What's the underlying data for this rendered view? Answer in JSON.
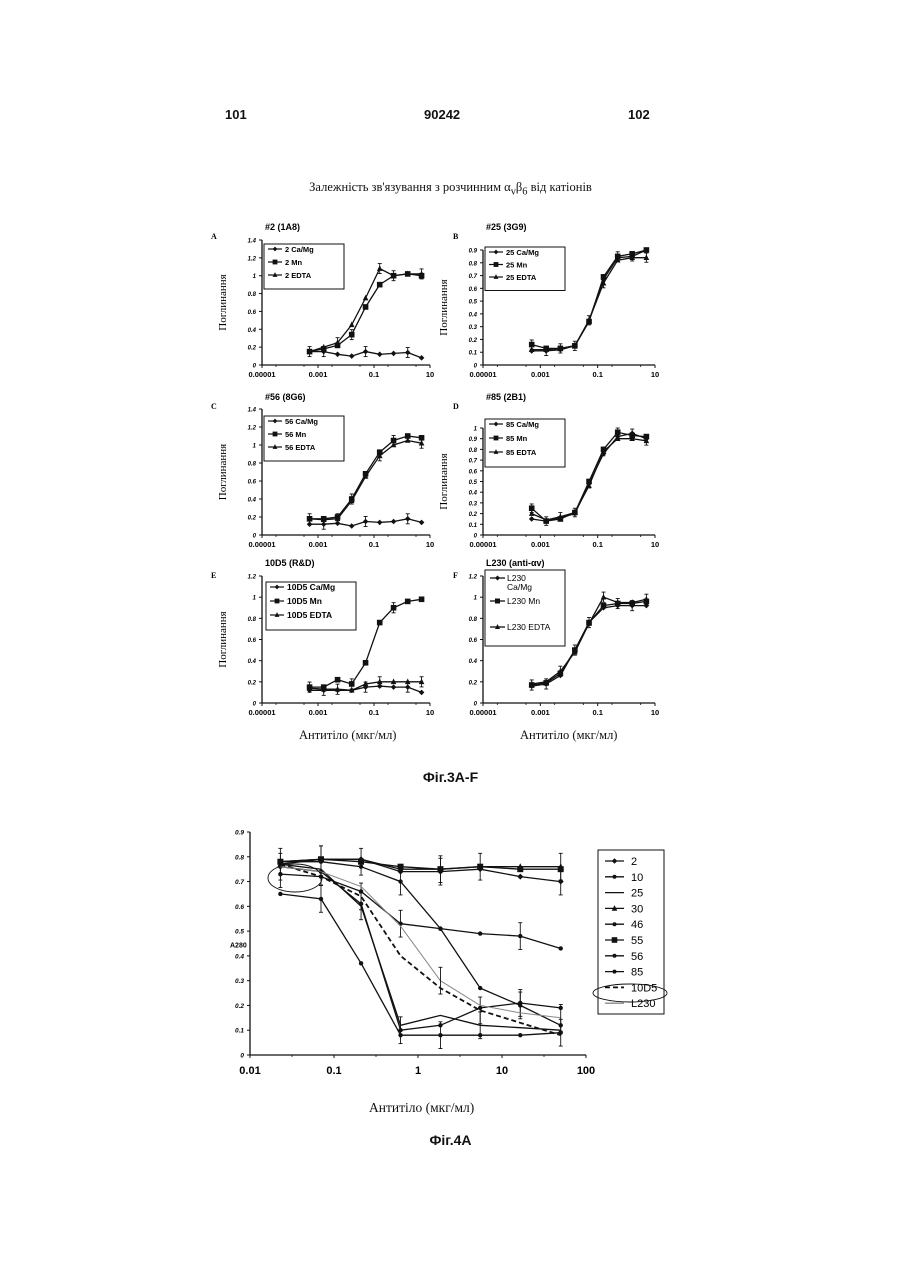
{
  "page": {
    "left": "101",
    "center": "90242",
    "right": "102"
  },
  "fig3": {
    "title": "Залежність зв'язування з розчинним α",
    "title_sub1": "v",
    "title_mid": "β",
    "title_sub2": "6",
    "title_end": " від катіонів",
    "caption": "Фіг.3А-F",
    "xlabel": "Антитіло (мкг/мл)"
  },
  "fig4": {
    "caption": "Фіг.4А",
    "xlabel": "Антитіло (мкг/мл)"
  },
  "chart_data": [
    {
      "id": "A",
      "letter": "A",
      "type": "line",
      "title": "#2 (1A8)",
      "xlabel": "",
      "ylabel": "Поглинання",
      "xscale": "log",
      "xlim": [
        1e-05,
        10
      ],
      "xticks": [
        "0.00001",
        "0.001",
        "0.1",
        "10"
      ],
      "ylim": [
        0,
        1.4
      ],
      "yticks": [
        "0",
        "0.2",
        "0.4",
        "0.6",
        "0.8",
        "1",
        "1.2",
        "1.4"
      ],
      "legend": "top-left",
      "ydec": 1,
      "x": [
        0.0005,
        0.0016,
        0.005,
        0.016,
        0.05,
        0.16,
        0.5,
        1.6,
        5
      ],
      "series": [
        {
          "name": "2 Ca/Mg",
          "marker": "diamond",
          "values": [
            0.15,
            0.15,
            0.12,
            0.1,
            0.15,
            0.12,
            0.13,
            0.14,
            0.08
          ]
        },
        {
          "name": "2 Mn",
          "marker": "square",
          "values": [
            0.15,
            0.18,
            0.22,
            0.34,
            0.65,
            0.9,
            1.0,
            1.02,
            1.0
          ]
        },
        {
          "name": "2 EDTA",
          "marker": "triangle",
          "values": [
            0.15,
            0.2,
            0.25,
            0.45,
            0.75,
            1.08,
            1.0,
            1.02,
            1.02
          ]
        }
      ]
    },
    {
      "id": "B",
      "letter": "B",
      "type": "line",
      "title": "#25 (3G9)",
      "xlabel": "",
      "ylabel": "Поглинання",
      "xscale": "log",
      "xlim": [
        1e-05,
        10
      ],
      "xticks": [
        "0.00001",
        "0.001",
        "0.1",
        "10"
      ],
      "ylim": [
        0,
        0.9
      ],
      "yticks": [
        "0",
        "0.1",
        "0.2",
        "0.3",
        "0.4",
        "0.5",
        "0.6",
        "0.7",
        "0.8",
        "0.9"
      ],
      "legend": "top-left",
      "ydec": 1,
      "x": [
        0.0005,
        0.0016,
        0.005,
        0.016,
        0.05,
        0.16,
        0.5,
        1.6,
        5
      ],
      "series": [
        {
          "name": "25 Ca/Mg",
          "marker": "diamond",
          "values": [
            0.11,
            0.11,
            0.12,
            0.15,
            0.35,
            0.67,
            0.84,
            0.85,
            0.9
          ]
        },
        {
          "name": "25 Mn",
          "marker": "square",
          "values": [
            0.16,
            0.13,
            0.13,
            0.15,
            0.34,
            0.69,
            0.85,
            0.87,
            0.9
          ]
        },
        {
          "name": "25 EDTA",
          "marker": "triangle",
          "values": [
            0.12,
            0.12,
            0.13,
            0.15,
            0.35,
            0.64,
            0.82,
            0.84,
            0.84
          ]
        }
      ]
    },
    {
      "id": "C",
      "letter": "C",
      "type": "line",
      "title": "#56 (8G6)",
      "xlabel": "",
      "ylabel": "Поглинання",
      "xscale": "log",
      "xlim": [
        1e-05,
        10
      ],
      "xticks": [
        "0.00001",
        "0.001",
        "0.1",
        "10"
      ],
      "ylim": [
        0,
        1.4
      ],
      "yticks": [
        "0",
        "0.2",
        "0.4",
        "0.6",
        "0.8",
        "1",
        "1.2",
        "1.4"
      ],
      "legend": "top-left",
      "ydec": 1,
      "x": [
        0.0005,
        0.0016,
        0.005,
        0.016,
        0.05,
        0.16,
        0.5,
        1.6,
        5
      ],
      "series": [
        {
          "name": "56 Ca/Mg",
          "marker": "diamond",
          "values": [
            0.12,
            0.12,
            0.13,
            0.1,
            0.15,
            0.14,
            0.15,
            0.18,
            0.14
          ]
        },
        {
          "name": "56 Mn",
          "marker": "square",
          "values": [
            0.18,
            0.18,
            0.2,
            0.4,
            0.68,
            0.92,
            1.05,
            1.1,
            1.08
          ]
        },
        {
          "name": "56 EDTA",
          "marker": "triangle",
          "values": [
            0.18,
            0.17,
            0.18,
            0.38,
            0.65,
            0.88,
            1.0,
            1.05,
            1.02
          ]
        }
      ]
    },
    {
      "id": "D",
      "letter": "D",
      "type": "line",
      "title": "#85 (2B1)",
      "xlabel": "",
      "ylabel": "Поглинання",
      "xscale": "log",
      "xlim": [
        1e-05,
        10
      ],
      "xticks": [
        "0.00001",
        "0.001",
        "0.1",
        "10"
      ],
      "ylim": [
        0,
        1
      ],
      "yticks": [
        "0",
        "0.1",
        "0.2",
        "0.3",
        "0.4",
        "0.5",
        "0.6",
        "0.7",
        "0.8",
        "0.9",
        "1"
      ],
      "legend": "top-left",
      "ydec": 1,
      "x": [
        0.0005,
        0.0016,
        0.005,
        0.016,
        0.05,
        0.16,
        0.5,
        1.6,
        5
      ],
      "series": [
        {
          "name": "85 Ca/Mg",
          "marker": "diamond",
          "values": [
            0.15,
            0.13,
            0.16,
            0.2,
            0.48,
            0.76,
            0.92,
            0.95,
            0.9
          ]
        },
        {
          "name": "85 Mn",
          "marker": "square",
          "values": [
            0.25,
            0.13,
            0.15,
            0.21,
            0.5,
            0.8,
            0.96,
            0.93,
            0.92
          ]
        },
        {
          "name": "85 EDTA",
          "marker": "triangle",
          "values": [
            0.2,
            0.14,
            0.17,
            0.21,
            0.46,
            0.78,
            0.9,
            0.9,
            0.88
          ]
        }
      ]
    },
    {
      "id": "E",
      "letter": "E",
      "type": "line",
      "title": "10D5 (R&D)",
      "xlabel": "",
      "ylabel": "Поглинання",
      "xscale": "log",
      "xlim": [
        1e-05,
        10
      ],
      "xticks": [
        "0.00001",
        "0.001",
        "0.1",
        "10"
      ],
      "ylim": [
        0,
        1.2
      ],
      "yticks": [
        "0",
        "0.2",
        "0.4",
        "0.6",
        "0.8",
        "1",
        "1.2"
      ],
      "legend": "top-left",
      "ydec": 1,
      "x": [
        0.0005,
        0.0016,
        0.005,
        0.016,
        0.05,
        0.16,
        0.5,
        1.6,
        5
      ],
      "series": [
        {
          "name": "10D5 Ca/Mg",
          "marker": "diamond",
          "values": [
            0.12,
            0.12,
            0.12,
            0.12,
            0.15,
            0.16,
            0.15,
            0.15,
            0.1
          ]
        },
        {
          "name": "10D5 Mn",
          "marker": "square",
          "values": [
            0.15,
            0.15,
            0.22,
            0.18,
            0.38,
            0.76,
            0.9,
            0.96,
            0.98
          ]
        },
        {
          "name": "10D5 EDTA",
          "marker": "triangle",
          "values": [
            0.14,
            0.13,
            0.13,
            0.12,
            0.18,
            0.2,
            0.2,
            0.2,
            0.2
          ]
        }
      ]
    },
    {
      "id": "F",
      "letter": "F",
      "type": "line",
      "title": "L230 (anti-αv)",
      "xlabel": "",
      "ylabel": "",
      "xscale": "log",
      "xlim": [
        1e-05,
        10
      ],
      "xticks": [
        "0.00001",
        "0.001",
        "0.1",
        "10"
      ],
      "ylim": [
        0,
        1.2
      ],
      "yticks": [
        "0",
        "0.2",
        "0.4",
        "0.6",
        "0.8",
        "1",
        "1.2"
      ],
      "legend": "top-left-boxed",
      "ydec": 1,
      "x": [
        0.0005,
        0.0016,
        0.005,
        0.016,
        0.05,
        0.16,
        0.5,
        1.6,
        5
      ],
      "series": [
        {
          "name": "L230 Ca/Mg",
          "label_lines": [
            "L230",
            "Ca/Mg"
          ],
          "marker": "diamond",
          "values": [
            0.16,
            0.18,
            0.26,
            0.5,
            0.76,
            0.9,
            0.92,
            0.92,
            0.92
          ]
        },
        {
          "name": "L230 Mn",
          "label_lines": [
            "L230 Mn"
          ],
          "marker": "square",
          "values": [
            0.17,
            0.19,
            0.28,
            0.5,
            0.76,
            0.92,
            0.94,
            0.94,
            0.96
          ]
        },
        {
          "name": "L230 EDTA",
          "label_lines": [
            "L230 EDTA"
          ],
          "marker": "triangle",
          "values": [
            0.18,
            0.2,
            0.3,
            0.48,
            0.75,
            1.0,
            0.95,
            0.95,
            0.98
          ]
        }
      ]
    },
    {
      "id": "4A",
      "letter": "",
      "type": "line",
      "title": "",
      "xlabel": "",
      "ylabel": "A280",
      "xscale": "log",
      "xlim": [
        0.01,
        100
      ],
      "xticks": [
        "0.01",
        "0.1",
        "1",
        "10",
        "100"
      ],
      "ylim": [
        0,
        0.9
      ],
      "yticks": [
        "0",
        "0.1",
        "0.2",
        "0.3",
        "0.4",
        "0.5",
        "0.6",
        "0.7",
        "0.8",
        "0.9"
      ],
      "legend": "right-boxed",
      "ydec": 1,
      "x": [
        0.023,
        0.07,
        0.21,
        0.62,
        1.85,
        5.5,
        16.5,
        50
      ],
      "series": [
        {
          "name": "2",
          "marker": "diamond",
          "values": [
            0.78,
            0.79,
            0.79,
            0.74,
            0.74,
            0.75,
            0.72,
            0.7
          ]
        },
        {
          "name": "10",
          "marker": "dot",
          "values": [
            0.76,
            0.74,
            0.61,
            0.1,
            0.12,
            0.19,
            0.21,
            0.19
          ]
        },
        {
          "name": "25",
          "marker": "none",
          "values": [
            0.77,
            0.75,
            0.6,
            0.12,
            0.16,
            0.12,
            0.11,
            0.1
          ]
        },
        {
          "name": "30",
          "marker": "triangle",
          "values": [
            0.77,
            0.79,
            0.79,
            0.75,
            0.75,
            0.76,
            0.76,
            0.76
          ]
        },
        {
          "name": "46",
          "marker": "dot",
          "values": [
            0.73,
            0.72,
            0.66,
            0.53,
            0.51,
            0.49,
            0.48,
            0.43
          ]
        },
        {
          "name": "55",
          "marker": "square",
          "values": [
            0.78,
            0.79,
            0.78,
            0.76,
            0.75,
            0.76,
            0.75,
            0.75
          ]
        },
        {
          "name": "56",
          "marker": "dot",
          "values": [
            0.65,
            0.63,
            0.37,
            0.08,
            0.08,
            0.08,
            0.08,
            0.09
          ]
        },
        {
          "name": "85",
          "marker": "dot",
          "values": [
            0.78,
            0.78,
            0.76,
            0.7,
            0.51,
            0.27,
            0.2,
            0.12
          ]
        },
        {
          "name": "10D5",
          "marker": "none",
          "dash": true,
          "values": [
            0.77,
            0.72,
            0.64,
            0.4,
            0.27,
            0.18,
            0.13,
            0.08
          ]
        },
        {
          "name": "L230",
          "marker": "none",
          "light": true,
          "values": [
            0.76,
            0.74,
            0.68,
            0.52,
            0.3,
            0.2,
            0.17,
            0.15
          ]
        }
      ]
    }
  ]
}
